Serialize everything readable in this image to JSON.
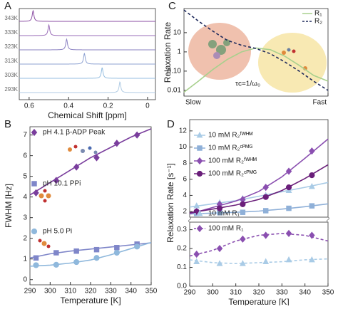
{
  "chart_data": [
    {
      "type": "spectra",
      "panel_label": "A",
      "x_label": "Chemical Shift [ppm]",
      "xlim": [
        0.65,
        -0.04
      ],
      "xticks": [
        0.6,
        0.4,
        0.2,
        0
      ],
      "series": [
        {
          "name": "343K",
          "color": "#8b4ea3",
          "peak": 0.58
        },
        {
          "name": "333K",
          "color": "#9a6cb8",
          "peak": 0.5
        },
        {
          "name": "323K",
          "color": "#8a80c2",
          "peak": 0.41
        },
        {
          "name": "313K",
          "color": "#8ea2d2",
          "peak": 0.32
        },
        {
          "name": "303K",
          "color": "#94bde0",
          "peak": 0.23
        },
        {
          "name": "293K",
          "color": "#b0cbe4",
          "peak": 0.14
        }
      ]
    },
    {
      "type": "line",
      "panel_label": "B",
      "x_label": "Temperature [K]",
      "y_label": "FWHM [Hz]",
      "xlim": [
        290,
        350
      ],
      "xticks": [
        290,
        300,
        310,
        320,
        330,
        340,
        350
      ],
      "ylim": [
        -0.25,
        7.4
      ],
      "yticks": [
        0,
        1,
        2,
        3,
        4,
        5,
        6,
        7
      ],
      "x": [
        293,
        303,
        313,
        323,
        333,
        343
      ],
      "fit_x": [
        290,
        300,
        310,
        320,
        330,
        340,
        350
      ],
      "series": [
        {
          "name": "pH 4.1 β-ADP Peak",
          "color": "#7a3e9d",
          "marker": "diamond",
          "values": [
            4.2,
            4.8,
            5.45,
            5.9,
            6.6,
            7.0
          ],
          "fit": [
            4.1,
            4.7,
            5.3,
            5.9,
            6.4,
            6.9,
            7.3
          ]
        },
        {
          "name": "pH 10.1 PPi",
          "color": "#7f86c9",
          "marker": "square",
          "values": [
            1.05,
            1.3,
            1.38,
            1.45,
            1.55,
            1.72
          ],
          "fit": [
            1.05,
            1.25,
            1.38,
            1.48,
            1.58,
            1.68,
            1.78
          ]
        },
        {
          "name": "pH 5.0 Pi",
          "color": "#8fb8dc",
          "marker": "circle",
          "values": [
            0.7,
            0.72,
            0.85,
            1.05,
            1.3,
            1.6
          ],
          "fit": [
            0.65,
            0.7,
            0.8,
            0.95,
            1.2,
            1.5,
            1.8
          ]
        }
      ]
    },
    {
      "type": "line",
      "panel_label": "C",
      "y_label": "Relaxation Rate",
      "log_y": true,
      "xlim": [
        0,
        10
      ],
      "xticks": [
        {
          "value": 0,
          "label": "Slow"
        },
        {
          "value": 10,
          "label": "Fast"
        }
      ],
      "ylim": [
        0.005,
        180
      ],
      "yticks": [
        0.01,
        {
          "value": 0.1,
          "label": "0.10"
        },
        1,
        10
      ],
      "x": [
        0,
        1,
        2,
        3,
        4,
        5,
        6,
        7,
        8,
        9,
        10
      ],
      "annotation": "τc=1/ω₀",
      "legend": "upper right",
      "series": [
        {
          "name": "R₁",
          "color": "#a8d08d",
          "line_style": "solid",
          "values": [
            0.008,
            0.03,
            0.12,
            0.4,
            1.0,
            1.6,
            1.3,
            0.6,
            0.2,
            0.06,
            0.03
          ]
        },
        {
          "name": "R₂",
          "color": "#1f2a5c",
          "line_style": "dashed",
          "values": [
            150,
            40,
            12,
            4,
            2.2,
            1.5,
            0.8,
            0.3,
            0.1,
            0.03,
            0.01
          ]
        }
      ]
    },
    {
      "type": "line",
      "panel_label": "D",
      "x_label": "Temperature [K]",
      "y_label": "Relaxation Rate [s⁻¹]",
      "xlim": [
        290,
        350
      ],
      "xticks": [
        290,
        300,
        310,
        320,
        330,
        340,
        350
      ],
      "ylim": [
        1.3,
        13.4
      ],
      "yticks": [
        2,
        4,
        6,
        8,
        10,
        12
      ],
      "y2lim": [
        0,
        0.34
      ],
      "y2ticks": [
        {
          "value": 0,
          "label": "0.0"
        },
        0.1,
        0.2,
        0.3
      ],
      "x": [
        293,
        303,
        313,
        323,
        333,
        343
      ],
      "fit_x": [
        290,
        300,
        310,
        320,
        330,
        340,
        350
      ],
      "series": [
        {
          "name": "10 mM R₂ᶠᵂᴴᴹ",
          "color": "#a9cbe6",
          "marker": "triangle",
          "line_style": "solid",
          "values": [
            2.7,
            3.1,
            3.6,
            4.0,
            4.6,
            5.1
          ],
          "fit": [
            2.55,
            2.95,
            3.35,
            3.9,
            4.45,
            5.0,
            5.6
          ]
        },
        {
          "name": "10 mM R₂ᶜᴾᴹᴳ",
          "color": "#8fb0d8",
          "marker": "square",
          "line_style": "solid",
          "values": [
            1.75,
            1.85,
            1.9,
            2.1,
            2.4,
            2.7
          ],
          "fit": [
            1.7,
            1.8,
            1.9,
            2.05,
            2.3,
            2.6,
            2.95
          ]
        },
        {
          "name": "100 mM R₂ᶠᵂᴴᴹ",
          "color": "#8a4fb0",
          "marker": "diamond",
          "line_style": "solid",
          "values": [
            2.0,
            2.9,
            3.5,
            5.0,
            7.0,
            9.5
          ],
          "fit": [
            1.7,
            2.5,
            3.3,
            4.5,
            6.3,
            8.6,
            11.0
          ]
        },
        {
          "name": "100 mM R₂ᶜᴾᴹᴳ",
          "color": "#6a1f7a",
          "marker": "circle",
          "line_style": "solid",
          "values": [
            2.0,
            2.4,
            2.9,
            3.8,
            5.0,
            6.5
          ],
          "fit": [
            1.85,
            2.3,
            2.8,
            3.5,
            4.6,
            6.1,
            7.8
          ]
        },
        {
          "name": "10 mM R₁",
          "color": "#a9cbe6",
          "marker": "triangle",
          "line_style": "dashed",
          "axis": "y2",
          "values": [
            0.13,
            0.12,
            0.12,
            0.13,
            0.14,
            0.14
          ],
          "fit": [
            0.14,
            0.125,
            0.12,
            0.125,
            0.13,
            0.14,
            0.145
          ]
        },
        {
          "name": "100 mM R₁",
          "color": "#8a4fb0",
          "marker": "diamond",
          "line_style": "dashed",
          "axis": "y2",
          "values": [
            0.17,
            0.2,
            0.25,
            0.27,
            0.28,
            0.27
          ],
          "fit": [
            0.16,
            0.19,
            0.24,
            0.27,
            0.28,
            0.27,
            0.24
          ]
        }
      ]
    }
  ]
}
